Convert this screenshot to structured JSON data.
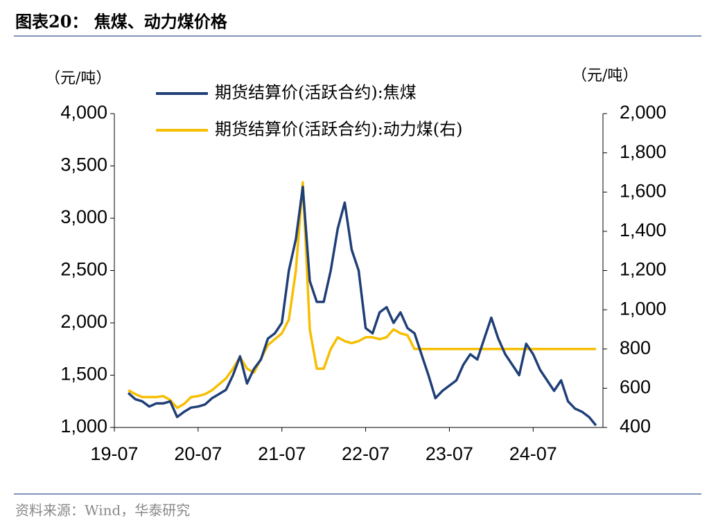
{
  "title": "图表20： 焦煤、动力煤价格",
  "source": "资料来源：Wind，华泰研究",
  "chart_data": {
    "type": "line",
    "y_label": "（元/吨）",
    "y2_label": "（元/吨）",
    "x": [
      "19-09",
      "19-10",
      "19-11",
      "19-12",
      "20-01",
      "20-02",
      "20-03",
      "20-04",
      "20-05",
      "20-06",
      "20-07",
      "20-08",
      "20-09",
      "20-10",
      "20-11",
      "20-12",
      "21-01",
      "21-02",
      "21-03",
      "21-04",
      "21-05",
      "21-06",
      "21-07",
      "21-08",
      "21-09",
      "21-10",
      "21-11",
      "21-12",
      "22-01",
      "22-02",
      "22-03",
      "22-04",
      "22-05",
      "22-06",
      "22-07",
      "22-08",
      "22-09",
      "22-10",
      "22-11",
      "22-12",
      "23-01",
      "23-02",
      "23-03",
      "23-04",
      "23-05",
      "23-06",
      "23-07",
      "23-08",
      "23-09",
      "23-10",
      "23-11",
      "23-12",
      "24-01",
      "24-02",
      "24-03",
      "24-04",
      "24-05",
      "24-06",
      "24-07",
      "24-08",
      "24-09",
      "24-10",
      "24-11",
      "24-12",
      "25-01",
      "25-02",
      "25-03",
      "25-04"
    ],
    "xlim": [
      "19-07",
      "25-05"
    ],
    "xticks": [
      "19-07",
      "20-07",
      "21-07",
      "22-07",
      "23-07",
      "24-07"
    ],
    "ylim": [
      1000,
      4000
    ],
    "yticks": [
      {
        "value": 1000,
        "label": "1,000"
      },
      {
        "value": 1500,
        "label": "1,500"
      },
      {
        "value": 2000,
        "label": "2,000"
      },
      {
        "value": 2500,
        "label": "2,500"
      },
      {
        "value": 3000,
        "label": "3,000"
      },
      {
        "value": 3500,
        "label": "3,500"
      },
      {
        "value": 4000,
        "label": "4,000"
      }
    ],
    "y2lim": [
      400,
      2000
    ],
    "y2ticks": [
      400,
      600,
      800,
      {
        "value": 1000,
        "label": "1,000"
      },
      {
        "value": 1200,
        "label": "1,200"
      },
      {
        "value": 1400,
        "label": "1,400"
      },
      {
        "value": 1600,
        "label": "1,600"
      },
      {
        "value": 1800,
        "label": "1,800"
      },
      {
        "value": 2000,
        "label": "2,000"
      }
    ],
    "series": [
      {
        "name": "期货结算价(活跃合约):焦煤",
        "color": "#1f3f77",
        "values": [
          1330,
          1270,
          1250,
          1200,
          1230,
          1230,
          1250,
          1100,
          1150,
          1190,
          1200,
          1220,
          1280,
          1320,
          1360,
          1500,
          1680,
          1420,
          1560,
          1650,
          1850,
          1900,
          2000,
          2500,
          2800,
          3300,
          2400,
          2200,
          2200,
          2500,
          2900,
          3150,
          2700,
          2500,
          1950,
          1900,
          2100,
          2150,
          2000,
          2100,
          1950,
          1900,
          1700,
          1500,
          1280,
          1350,
          1400,
          1450,
          1600,
          1700,
          1650,
          1850,
          2050,
          1850,
          1700,
          1600,
          1500,
          1800,
          1700,
          1550,
          1450,
          1350,
          1450,
          1250,
          1180,
          1150,
          1100,
          1020
        ]
      },
      {
        "name": "期货结算价(活跃合约):动力煤(右)",
        "color": "#f7be00",
        "axis": "y2",
        "values": [
          590,
          570,
          555,
          555,
          555,
          560,
          540,
          500,
          520,
          555,
          560,
          570,
          590,
          620,
          650,
          700,
          760,
          700,
          680,
          750,
          820,
          850,
          880,
          950,
          1200,
          1650,
          900,
          700,
          700,
          800,
          860,
          840,
          830,
          840,
          860,
          860,
          850,
          860,
          900,
          880,
          870,
          800,
          800,
          800,
          800,
          800,
          800,
          800,
          800,
          800,
          800,
          800,
          800,
          800,
          800,
          800,
          800,
          800,
          800,
          800,
          800,
          800,
          800,
          800,
          800,
          800,
          800,
          800
        ]
      }
    ]
  }
}
